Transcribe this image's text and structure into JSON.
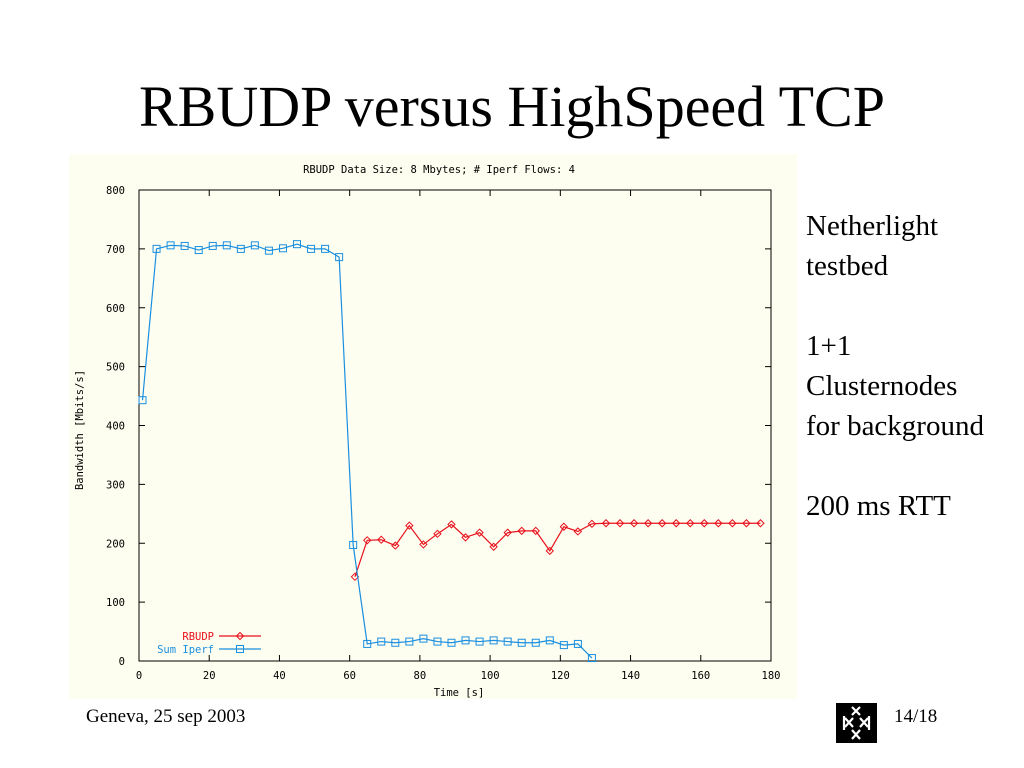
{
  "slide": {
    "title": "RBUDP versus HighSpeed TCP",
    "notes": [
      "Netherlight",
      "testbed",
      "",
      "1+1",
      "Clusternodes",
      "for background",
      "",
      "200 ms RTT"
    ],
    "footer_left": "Geneva, 25 sep 2003",
    "footer_right": "14/18",
    "logo_icon": "university-logo-icon"
  },
  "chart_data": {
    "type": "line",
    "title": "RBUDP Data Size: 8 Mbytes; # Iperf Flows: 4",
    "xlabel": "Time [s]",
    "ylabel": "Bandwidth [Mbits/s]",
    "xlim": [
      0,
      180
    ],
    "ylim": [
      0,
      800
    ],
    "xticks": [
      0,
      20,
      40,
      60,
      80,
      100,
      120,
      140,
      160,
      180
    ],
    "yticks": [
      0,
      100,
      200,
      300,
      400,
      500,
      600,
      700,
      800
    ],
    "grid": false,
    "legend_position": "bottom-left",
    "background": "#fefef0",
    "series": [
      {
        "name": "RBUDP",
        "color": "#e8101c",
        "marker": "diamond",
        "x": [
          61.5,
          65,
          69,
          73,
          77,
          81,
          85,
          89,
          93,
          97,
          101,
          105,
          109,
          113,
          117,
          121,
          125,
          129,
          133,
          137,
          141,
          145,
          149,
          153,
          157,
          161,
          165,
          169,
          173,
          177
        ],
        "y": [
          143,
          205,
          206,
          196,
          230,
          198,
          216,
          232,
          210,
          218,
          194,
          218,
          221,
          221,
          187,
          228,
          220,
          233,
          234,
          234,
          234,
          234,
          234,
          234,
          234,
          234,
          234,
          234,
          234,
          234
        ]
      },
      {
        "name": "Sum Iperf",
        "color": "#1a8fe0",
        "marker": "square",
        "x": [
          1,
          5,
          9,
          13,
          17,
          21,
          25,
          29,
          33,
          37,
          41,
          45,
          49,
          53,
          57,
          61,
          65,
          69,
          73,
          77,
          81,
          85,
          89,
          93,
          97,
          101,
          105,
          109,
          113,
          117,
          121,
          125,
          129
        ],
        "y": [
          443,
          700,
          706,
          705,
          698,
          705,
          706,
          700,
          706,
          697,
          701,
          708,
          700,
          700,
          686,
          197,
          29,
          33,
          31,
          33,
          38,
          33,
          31,
          35,
          33,
          35,
          33,
          31,
          31,
          35,
          27,
          29,
          5
        ]
      }
    ]
  }
}
